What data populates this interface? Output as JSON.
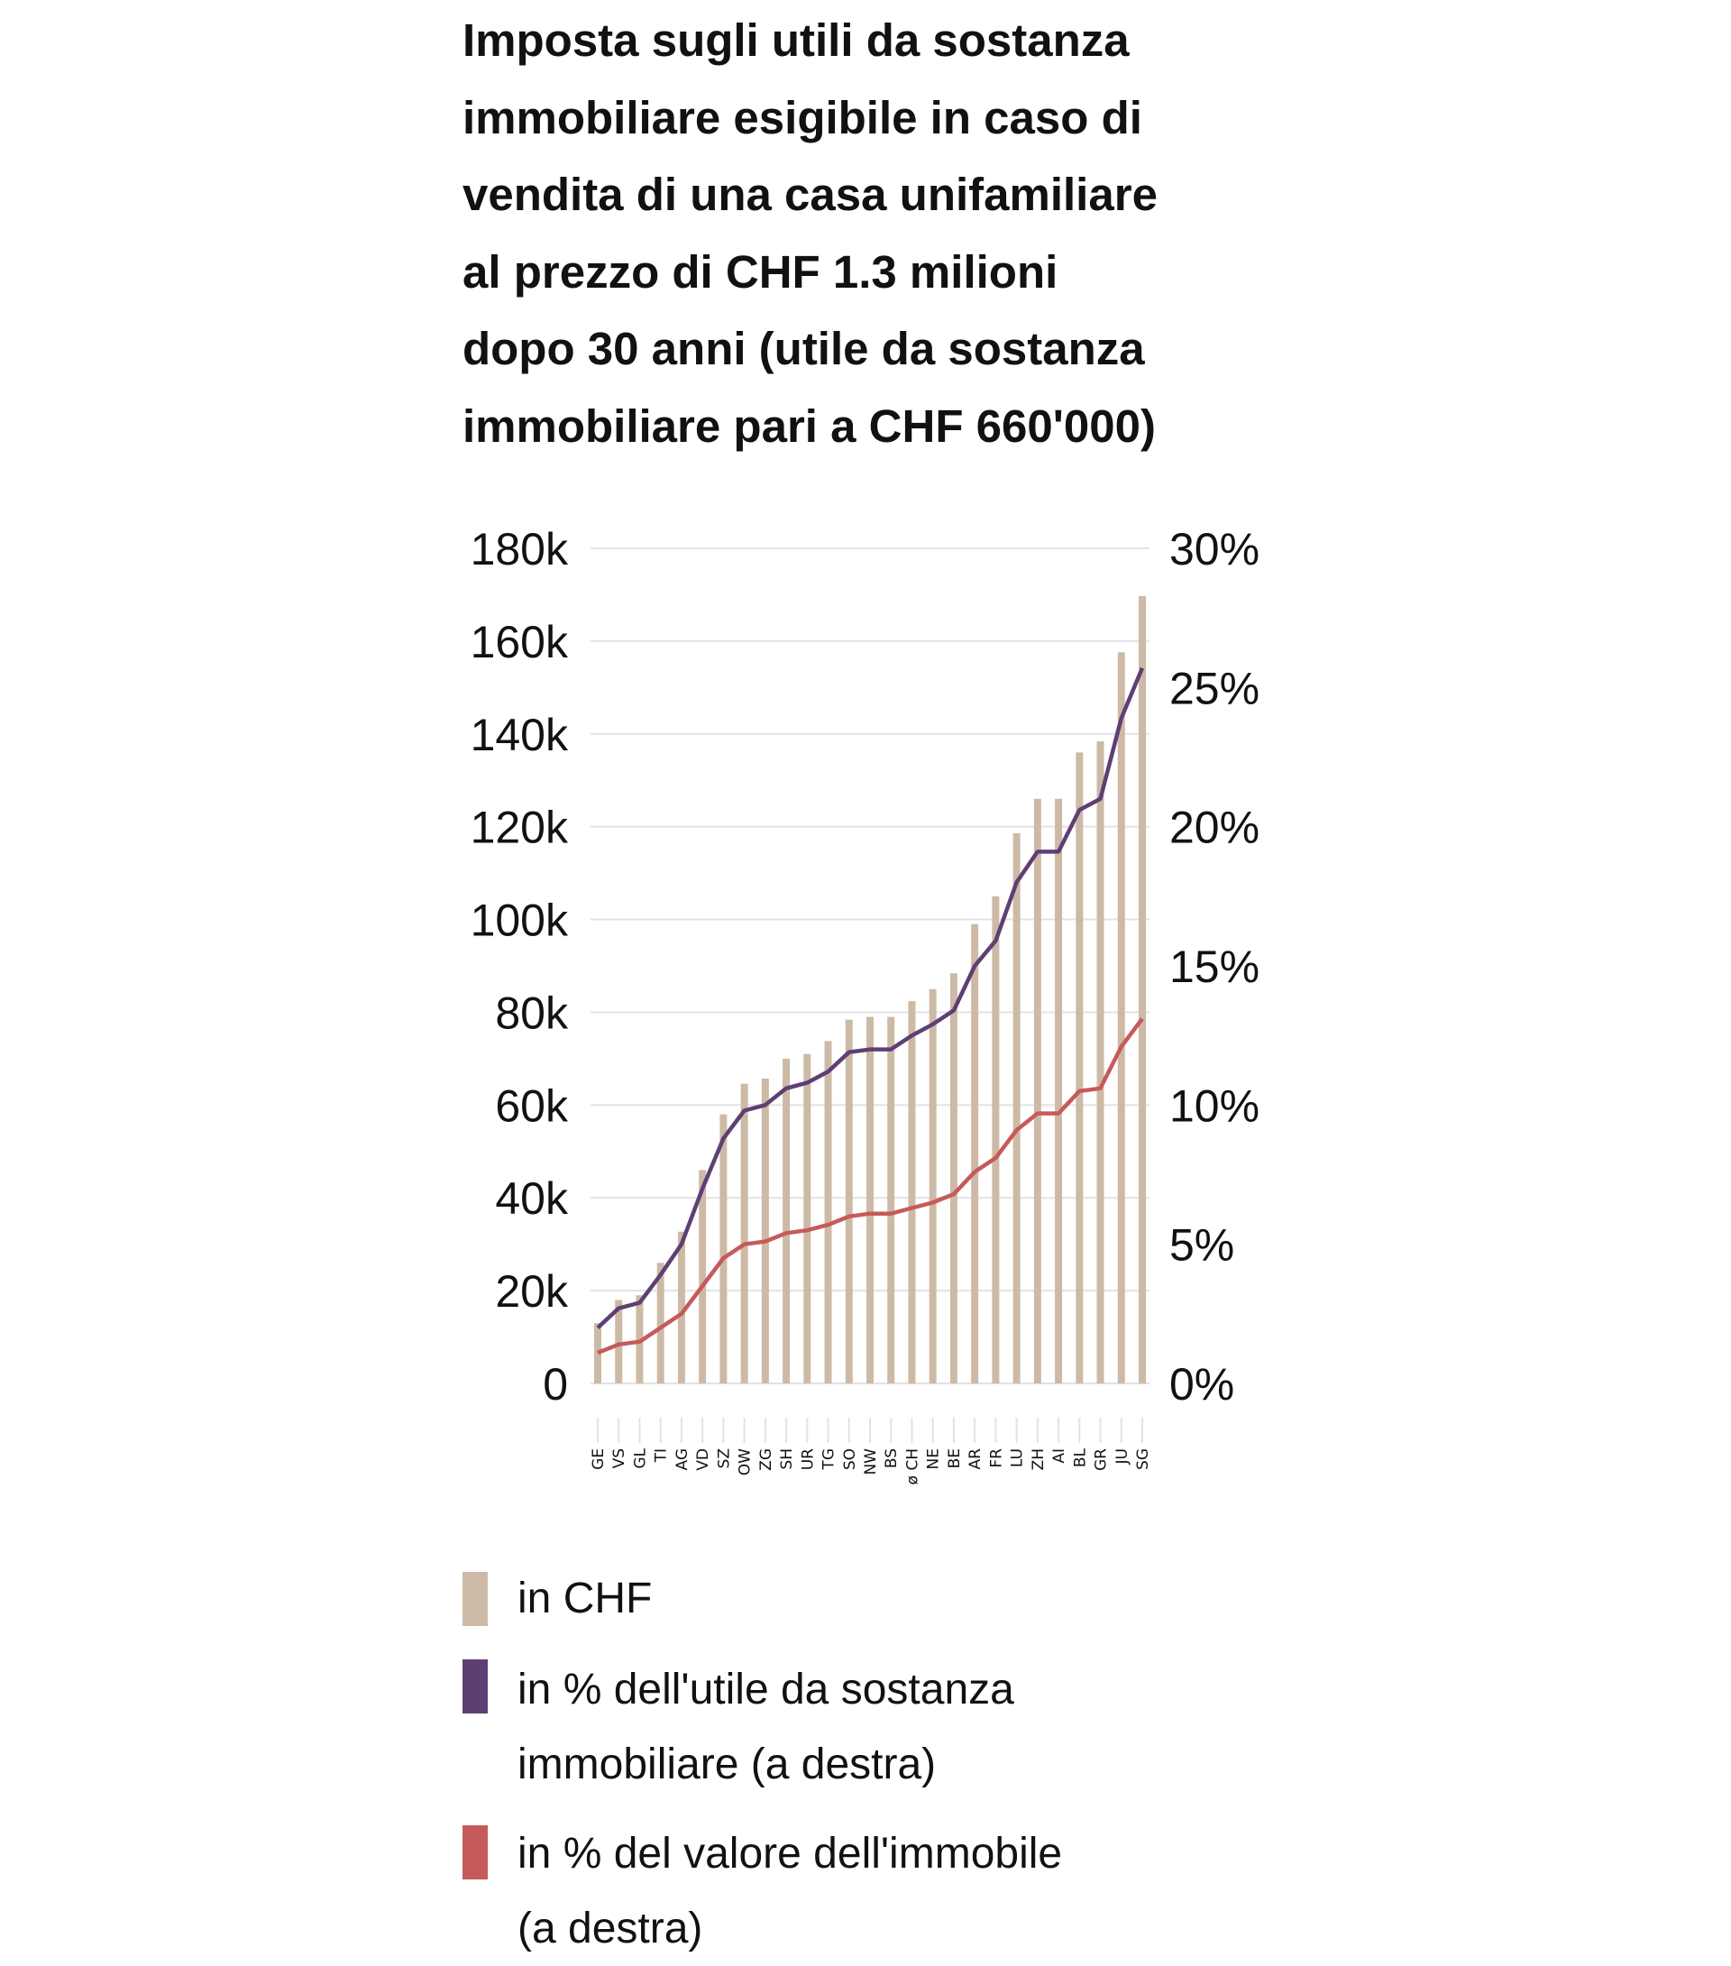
{
  "chart_data": {
    "type": "bar+line",
    "title_lines": [
      "Imposta sugli utili da sostanza",
      "immobiliare esigibile in caso di",
      "vendita di una casa unifamiliare",
      "al prezzo di CHF 1.3 milioni",
      "dopo 30 anni (utile da sostanza",
      "immobiliare pari a CHF 660'000)"
    ],
    "categories": [
      "GE",
      "VS",
      "GL",
      "TI",
      "AG",
      "VD",
      "SZ",
      "OW",
      "ZG",
      "SH",
      "UR",
      "TG",
      "SO",
      "NW",
      "BS",
      "ø CH",
      "NE",
      "BE",
      "AR",
      "FR",
      "LU",
      "ZH",
      "AI",
      "BL",
      "GR",
      "JU",
      "SG"
    ],
    "left_axis": {
      "ylim": [
        0,
        180000
      ],
      "ticks": [
        0,
        20000,
        40000,
        60000,
        80000,
        100000,
        120000,
        140000,
        160000,
        180000
      ],
      "tick_labels": [
        "0",
        "20k",
        "40k",
        "60k",
        "80k",
        "100k",
        "120k",
        "140k",
        "160k",
        "180k"
      ]
    },
    "right_axis": {
      "ylim": [
        0,
        30
      ],
      "ticks": [
        0,
        5,
        10,
        15,
        20,
        25,
        30
      ],
      "tick_labels": [
        "0%",
        "5%",
        "10%",
        "15%",
        "20%",
        "25%",
        "30%"
      ]
    },
    "grid": true,
    "legend_placement": "bottom",
    "series": [
      {
        "name": "in CHF",
        "type": "bar",
        "axis": "left",
        "color": "#cdbaa6",
        "values": [
          13000,
          18000,
          19000,
          26000,
          32700,
          46000,
          58000,
          64600,
          65700,
          70000,
          71000,
          73800,
          78400,
          79000,
          79000,
          82400,
          85000,
          88400,
          99000,
          105000,
          118600,
          126000,
          126000,
          136000,
          138400,
          157600,
          169700
        ]
      },
      {
        "name": "in % dell'utile da sostanza immobiliare (a destra)",
        "legend_lines": [
          "in % dell'utile da sostanza",
          "immobiliare (a destra)"
        ],
        "type": "line",
        "axis": "right",
        "color": "#5e3f74",
        "values": [
          2.0,
          2.7,
          2.9,
          3.9,
          5.0,
          7.0,
          8.8,
          9.8,
          10.0,
          10.6,
          10.8,
          11.2,
          11.9,
          12.0,
          12.0,
          12.5,
          12.9,
          13.4,
          15.0,
          15.9,
          18.0,
          19.1,
          19.1,
          20.6,
          21.0,
          23.9,
          25.7
        ]
      },
      {
        "name": "in % del valore dell'immobile (a destra)",
        "legend_lines": [
          "in % del valore dell'immobile",
          "(a destra)"
        ],
        "type": "line",
        "axis": "right",
        "color": "#c65a5a",
        "values": [
          1.1,
          1.4,
          1.5,
          2.0,
          2.5,
          3.5,
          4.5,
          5.0,
          5.1,
          5.4,
          5.5,
          5.7,
          6.0,
          6.1,
          6.1,
          6.3,
          6.5,
          6.8,
          7.6,
          8.1,
          9.1,
          9.7,
          9.7,
          10.5,
          10.6,
          12.1,
          13.1
        ]
      }
    ]
  }
}
